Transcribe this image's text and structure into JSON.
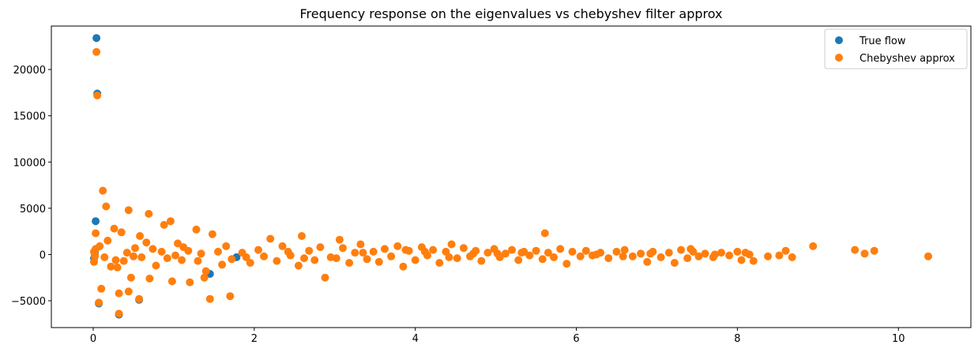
{
  "chart_data": {
    "type": "scatter",
    "title": "Frequency response on the eigenvalues vs chebyshev filter approx",
    "xlabel": "",
    "ylabel": "",
    "xlim": [
      -0.52,
      10.9
    ],
    "ylim": [
      -7900,
      24700
    ],
    "xticks": [
      0,
      2,
      4,
      6,
      8,
      10
    ],
    "yticks": [
      -5000,
      0,
      5000,
      10000,
      15000,
      20000
    ],
    "grid": false,
    "legend_position": "top-right",
    "series": [
      {
        "name": "True flow",
        "color": "#1f77b4",
        "points": [
          [
            0.04,
            23400
          ],
          [
            0.05,
            17400
          ],
          [
            0.03,
            3600
          ],
          [
            0.32,
            -6500
          ],
          [
            0.07,
            -5300
          ],
          [
            0.57,
            -4900
          ],
          [
            1.45,
            -2100
          ],
          [
            1.78,
            -300
          ],
          [
            0.01,
            -400
          ],
          [
            0.02,
            200
          ]
        ]
      },
      {
        "name": "Chebyshev approx",
        "color": "#ff7f0e",
        "points": [
          [
            0.04,
            21900
          ],
          [
            0.05,
            17200
          ],
          [
            0.12,
            6900
          ],
          [
            0.16,
            5200
          ],
          [
            0.44,
            4800
          ],
          [
            0.69,
            4400
          ],
          [
            0.96,
            3600
          ],
          [
            0.88,
            3200
          ],
          [
            0.26,
            2800
          ],
          [
            0.35,
            2400
          ],
          [
            0.03,
            2300
          ],
          [
            0.58,
            2000
          ],
          [
            1.28,
            2700
          ],
          [
            1.48,
            2200
          ],
          [
            2.59,
            2000
          ],
          [
            2.2,
            1700
          ],
          [
            3.06,
            1600
          ],
          [
            5.61,
            2300
          ],
          [
            0.07,
            -5200
          ],
          [
            0.1,
            -3700
          ],
          [
            0.32,
            -6400
          ],
          [
            0.57,
            -4800
          ],
          [
            1.45,
            -4800
          ],
          [
            1.7,
            -4500
          ],
          [
            0.44,
            -4000
          ],
          [
            0.32,
            -4200
          ],
          [
            0.22,
            -1300
          ],
          [
            0.47,
            -2500
          ],
          [
            0.7,
            -2600
          ],
          [
            0.98,
            -2900
          ],
          [
            1.2,
            -3000
          ],
          [
            1.38,
            -2500
          ],
          [
            2.88,
            -2500
          ],
          [
            0.01,
            300
          ],
          [
            0.02,
            -200
          ],
          [
            0.01,
            -800
          ],
          [
            0.03,
            600
          ],
          [
            0.14,
            -300
          ],
          [
            0.3,
            -1400
          ],
          [
            0.38,
            -700
          ],
          [
            0.52,
            700
          ],
          [
            0.6,
            -300
          ],
          [
            0.78,
            -1200
          ],
          [
            0.85,
            300
          ],
          [
            1.05,
            1200
          ],
          [
            1.1,
            -600
          ],
          [
            1.18,
            400
          ],
          [
            1.3,
            -700
          ],
          [
            1.4,
            -1800
          ],
          [
            1.55,
            300
          ],
          [
            1.65,
            900
          ],
          [
            1.72,
            -500
          ],
          [
            1.85,
            200
          ],
          [
            1.95,
            -900
          ],
          [
            2.05,
            500
          ],
          [
            2.12,
            -200
          ],
          [
            2.28,
            -700
          ],
          [
            2.35,
            900
          ],
          [
            2.45,
            -100
          ],
          [
            2.55,
            -1200
          ],
          [
            2.68,
            400
          ],
          [
            2.75,
            -600
          ],
          [
            2.82,
            800
          ],
          [
            2.95,
            -300
          ],
          [
            3.1,
            700
          ],
          [
            3.18,
            -900
          ],
          [
            3.25,
            200
          ],
          [
            3.32,
            1100
          ],
          [
            3.4,
            -500
          ],
          [
            3.48,
            300
          ],
          [
            3.55,
            -800
          ],
          [
            3.62,
            600
          ],
          [
            3.7,
            -200
          ],
          [
            3.78,
            900
          ],
          [
            3.85,
            -1300
          ],
          [
            3.92,
            400
          ],
          [
            4.0,
            -600
          ],
          [
            4.08,
            800
          ],
          [
            4.15,
            -100
          ],
          [
            4.22,
            500
          ],
          [
            4.3,
            -900
          ],
          [
            4.38,
            300
          ],
          [
            4.45,
            1100
          ],
          [
            4.52,
            -400
          ],
          [
            4.6,
            700
          ],
          [
            4.68,
            -200
          ],
          [
            4.75,
            400
          ],
          [
            4.82,
            -700
          ],
          [
            4.9,
            200
          ],
          [
            4.98,
            600
          ],
          [
            5.05,
            -300
          ],
          [
            5.12,
            100
          ],
          [
            5.2,
            500
          ],
          [
            5.28,
            -600
          ],
          [
            5.35,
            300
          ],
          [
            5.42,
            -100
          ],
          [
            5.5,
            400
          ],
          [
            5.58,
            -500
          ],
          [
            5.65,
            200
          ],
          [
            5.72,
            -300
          ],
          [
            5.8,
            600
          ],
          [
            5.88,
            -1000
          ],
          [
            5.95,
            300
          ],
          [
            6.05,
            -200
          ],
          [
            6.12,
            400
          ],
          [
            6.2,
            -100
          ],
          [
            6.3,
            200
          ],
          [
            6.4,
            -400
          ],
          [
            6.5,
            300
          ],
          [
            6.6,
            500
          ],
          [
            6.7,
            -200
          ],
          [
            6.8,
            100
          ],
          [
            6.88,
            -800
          ],
          [
            6.95,
            300
          ],
          [
            7.05,
            -300
          ],
          [
            7.15,
            200
          ],
          [
            7.22,
            -900
          ],
          [
            7.3,
            500
          ],
          [
            7.38,
            -400
          ],
          [
            7.45,
            300
          ],
          [
            7.52,
            -200
          ],
          [
            7.6,
            100
          ],
          [
            7.7,
            -300
          ],
          [
            7.8,
            200
          ],
          [
            7.9,
            -100
          ],
          [
            8.0,
            300
          ],
          [
            8.05,
            -600
          ],
          [
            8.15,
            0
          ],
          [
            8.2,
            -700
          ],
          [
            8.38,
            -200
          ],
          [
            8.52,
            -100
          ],
          [
            8.6,
            400
          ],
          [
            8.68,
            -300
          ],
          [
            8.94,
            900
          ],
          [
            9.46,
            500
          ],
          [
            9.58,
            100
          ],
          [
            9.7,
            400
          ],
          [
            10.37,
            -200
          ],
          [
            0.08,
            900
          ],
          [
            0.18,
            1500
          ],
          [
            0.42,
            200
          ],
          [
            0.66,
            1300
          ],
          [
            0.92,
            -400
          ],
          [
            1.02,
            -100
          ],
          [
            1.6,
            -1100
          ],
          [
            2.42,
            300
          ],
          [
            3.02,
            -400
          ],
          [
            3.88,
            500
          ],
          [
            4.42,
            -300
          ],
          [
            5.02,
            100
          ],
          [
            6.58,
            -200
          ],
          [
            7.42,
            600
          ],
          [
            0.02,
            0
          ],
          [
            0.28,
            -600
          ],
          [
            0.5,
            -200
          ],
          [
            0.74,
            600
          ],
          [
            1.12,
            800
          ],
          [
            1.34,
            100
          ],
          [
            1.9,
            -300
          ],
          [
            2.62,
            -400
          ],
          [
            3.35,
            200
          ],
          [
            4.12,
            300
          ],
          [
            4.72,
            100
          ],
          [
            5.32,
            200
          ],
          [
            6.25,
            0
          ],
          [
            6.92,
            100
          ],
          [
            7.72,
            0
          ],
          [
            8.1,
            200
          ]
        ]
      }
    ]
  }
}
